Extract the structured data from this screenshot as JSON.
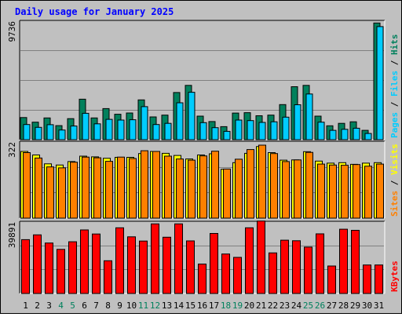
{
  "chart_data": {
    "type": "bar",
    "title": "Daily usage for January 2025",
    "categories": [
      "1",
      "2",
      "3",
      "4",
      "5",
      "6",
      "7",
      "8",
      "9",
      "10",
      "11",
      "12",
      "13",
      "14",
      "15",
      "16",
      "17",
      "18",
      "19",
      "20",
      "21",
      "22",
      "23",
      "24",
      "25",
      "26",
      "27",
      "28",
      "29",
      "30",
      "31"
    ],
    "weekend_days": [
      "4",
      "5",
      "11",
      "12",
      "18",
      "19",
      "25",
      "26"
    ],
    "panels": [
      {
        "name": "hits_files_pages",
        "ymax": 9736,
        "ymax_label": "9736",
        "axis_labels": [
          "Pages",
          "Files",
          "Hits"
        ],
        "series": [
          {
            "name": "Hits",
            "color": "#00805c",
            "values": [
              1830,
              1450,
              1800,
              1160,
              1740,
              3350,
              1800,
              2570,
              2100,
              2210,
              3290,
              1880,
              2030,
              3900,
              4490,
              1950,
              1500,
              1080,
              2200,
              2230,
              1980,
              2030,
              2900,
              4380,
              4490,
              1950,
              1150,
              1350,
              1480,
              770,
              9650
            ]
          },
          {
            "name": "Files",
            "color": "#00ccff",
            "values": [
              1250,
              1020,
              1240,
              800,
              1130,
              2180,
              1310,
              1680,
              1620,
              1650,
              2730,
              1250,
              1350,
              3050,
              3920,
              1410,
              990,
              690,
              1620,
              1580,
              1430,
              1480,
              1860,
              2890,
              3780,
              1450,
              770,
              860,
              950,
              510,
              9350
            ]
          },
          {
            "name": "Pages",
            "color": "#00ccff",
            "values": [
              1250,
              1020,
              1240,
              800,
              1130,
              2180,
              1310,
              1680,
              1620,
              1650,
              2730,
              1250,
              1350,
              3050,
              3920,
              1410,
              990,
              690,
              1620,
              1580,
              1430,
              1480,
              1860,
              2890,
              3780,
              1450,
              770,
              860,
              950,
              510,
              9350
            ]
          }
        ]
      },
      {
        "name": "visits_sites",
        "ymax": 322,
        "ymax_label": "322",
        "axis_labels": [
          "Sites",
          "Visits"
        ],
        "series": [
          {
            "name": "Visits",
            "color": "#ffff00",
            "values": [
              285,
              270,
              232,
              227,
              242,
              265,
              262,
              256,
              260,
              260,
              276,
              285,
              277,
              268,
              253,
              270,
              275,
              209,
              237,
              277,
              306,
              280,
              248,
              249,
              284,
              244,
              235,
              237,
              230,
              235,
              237
            ]
          },
          {
            "name": "Sites",
            "color": "#ff8000",
            "values": [
              280,
              257,
              219,
              215,
              239,
              261,
              258,
              243,
              261,
              255,
              288,
              285,
              265,
              253,
              248,
              266,
              286,
              210,
              252,
              293,
              312,
              276,
              242,
              249,
              281,
              231,
              227,
              226,
              229,
              222,
              231
            ]
          }
        ]
      },
      {
        "name": "kbytes",
        "ymax": 39891,
        "ymax_label": "39891",
        "axis_labels": [
          "KBytes"
        ],
        "series": [
          {
            "name": "KBytes",
            "color": "#ff0000",
            "values": [
              30400,
              33100,
              28500,
              24900,
              29200,
              35900,
              33600,
              18500,
              37100,
              32000,
              29600,
              39300,
              31800,
              39300,
              29700,
              16600,
              33900,
              22300,
              20400,
              37100,
              40900,
              22900,
              30100,
              29800,
              26200,
              33700,
              15500,
              36300,
              35700,
              16100,
              16100
            ]
          }
        ]
      }
    ]
  }
}
